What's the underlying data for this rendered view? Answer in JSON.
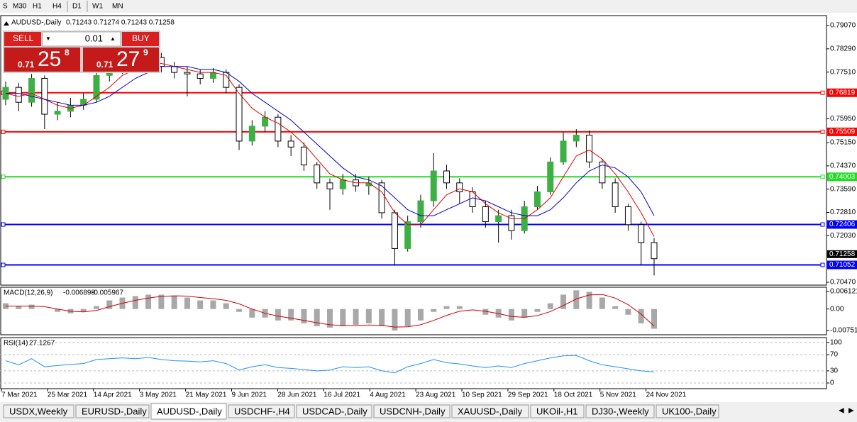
{
  "toolbar": {
    "timeframes": [
      "S",
      "M30",
      "H1",
      "H4",
      "D1",
      "W1",
      "MN"
    ]
  },
  "trade_panel": {
    "sell": "SELL",
    "buy": "BUY",
    "lot": "0.01",
    "sell_price": {
      "big": "0.71",
      "main": "25",
      "pip": "8"
    },
    "buy_price": {
      "big": "0.71",
      "main": "27",
      "pip": "9"
    }
  },
  "chart_data": [
    {
      "type": "candlestick",
      "title": "AUDUSD-,Daily",
      "subtitle": "0.71243 0.71274 0.71243 0.71258",
      "date_labels": [
        "7 Mar 2021",
        "25 Mar 2021",
        "14 Apr 2021",
        "3 May 2021",
        "21 May 2021",
        "9 Jun 2021",
        "28 Jun 2021",
        "16 Jul 2021",
        "4 Aug 2021",
        "23 Aug 2021",
        "10 Sep 2021",
        "29 Sep 2021",
        "18 Oct 2021",
        "5 Nov 2021",
        "24 Nov 2021"
      ],
      "open": [
        0.766,
        0.77,
        0.765,
        0.773,
        0.761,
        0.762,
        0.764,
        0.766,
        0.774,
        0.776,
        0.778,
        0.7775,
        0.78,
        0.777,
        0.775,
        0.7745,
        0.773,
        0.775,
        0.77,
        0.752,
        0.757,
        0.76,
        0.752,
        0.75,
        0.744,
        0.738,
        0.736,
        0.739,
        0.737,
        0.738,
        0.728,
        0.716,
        0.725,
        0.732,
        0.742,
        0.738,
        0.735,
        0.73,
        0.725,
        0.727,
        0.722,
        0.73,
        0.735,
        0.745,
        0.752,
        0.754,
        0.745,
        0.738,
        0.73,
        0.724,
        0.718
      ],
      "high": [
        0.772,
        0.7715,
        0.7745,
        0.774,
        0.765,
        0.7665,
        0.768,
        0.776,
        0.778,
        0.78,
        0.784,
        0.782,
        0.7815,
        0.7785,
        0.777,
        0.776,
        0.7765,
        0.776,
        0.771,
        0.759,
        0.762,
        0.761,
        0.754,
        0.7515,
        0.745,
        0.7395,
        0.741,
        0.741,
        0.74,
        0.739,
        0.729,
        0.727,
        0.734,
        0.748,
        0.744,
        0.7395,
        0.7365,
        0.732,
        0.729,
        0.729,
        0.732,
        0.737,
        0.7465,
        0.755,
        0.756,
        0.7555,
        0.746,
        0.7395,
        0.731,
        0.725,
        0.7195
      ],
      "low": [
        0.764,
        0.762,
        0.7635,
        0.756,
        0.759,
        0.76,
        0.7625,
        0.765,
        0.772,
        0.7745,
        0.7755,
        0.776,
        0.775,
        0.773,
        0.767,
        0.771,
        0.7715,
        0.768,
        0.749,
        0.7505,
        0.755,
        0.75,
        0.747,
        0.742,
        0.736,
        0.729,
        0.734,
        0.735,
        0.734,
        0.726,
        0.7105,
        0.715,
        0.723,
        0.73,
        0.736,
        0.731,
        0.728,
        0.723,
        0.718,
        0.719,
        0.721,
        0.729,
        0.734,
        0.744,
        0.75,
        0.743,
        0.736,
        0.728,
        0.722,
        0.7105,
        0.707
      ],
      "close": [
        0.77,
        0.765,
        0.773,
        0.761,
        0.762,
        0.764,
        0.766,
        0.774,
        0.776,
        0.778,
        0.7775,
        0.78,
        0.777,
        0.775,
        0.7745,
        0.773,
        0.775,
        0.77,
        0.752,
        0.757,
        0.76,
        0.752,
        0.75,
        0.744,
        0.738,
        0.736,
        0.739,
        0.737,
        0.738,
        0.728,
        0.716,
        0.725,
        0.732,
        0.742,
        0.738,
        0.735,
        0.73,
        0.725,
        0.727,
        0.722,
        0.73,
        0.735,
        0.745,
        0.752,
        0.754,
        0.745,
        0.738,
        0.73,
        0.724,
        0.718,
        0.7126
      ],
      "up_color": "#3cb043",
      "down_color": "#ffffff",
      "lines": [
        {
          "color": "#e00000",
          "values": [
            0.768,
            0.767,
            0.768,
            0.766,
            0.764,
            0.763,
            0.764,
            0.767,
            0.77,
            0.774,
            0.776,
            0.778,
            0.778,
            0.777,
            0.776,
            0.775,
            0.775,
            0.774,
            0.768,
            0.763,
            0.76,
            0.758,
            0.755,
            0.751,
            0.746,
            0.741,
            0.739,
            0.738,
            0.738,
            0.735,
            0.728,
            0.724,
            0.724,
            0.729,
            0.734,
            0.736,
            0.735,
            0.731,
            0.728,
            0.726,
            0.726,
            0.729,
            0.733,
            0.74,
            0.747,
            0.749,
            0.746,
            0.741,
            0.735,
            0.728,
            0.72
          ]
        },
        {
          "color": "#0000c8",
          "values": [
            0.768,
            0.768,
            0.767,
            0.766,
            0.765,
            0.764,
            0.764,
            0.765,
            0.767,
            0.77,
            0.773,
            0.775,
            0.777,
            0.777,
            0.777,
            0.776,
            0.776,
            0.775,
            0.772,
            0.768,
            0.765,
            0.762,
            0.759,
            0.755,
            0.751,
            0.747,
            0.743,
            0.74,
            0.739,
            0.737,
            0.733,
            0.729,
            0.727,
            0.727,
            0.729,
            0.731,
            0.733,
            0.732,
            0.73,
            0.728,
            0.727,
            0.727,
            0.729,
            0.733,
            0.738,
            0.742,
            0.744,
            0.743,
            0.74,
            0.735,
            0.727
          ]
        }
      ],
      "levels": [
        {
          "value": 0.76819,
          "color": "#ff0000"
        },
        {
          "value": 0.75509,
          "color": "#ff0000"
        },
        {
          "value": 0.74003,
          "color": "#22dd22"
        },
        {
          "value": 0.72406,
          "color": "#0000ff"
        },
        {
          "value": 0.71052,
          "color": "#0000ff"
        }
      ],
      "current_price": 0.71258,
      "ylim": [
        0.70375,
        0.79403
      ],
      "yticks": [
        {
          "value": 0.7907,
          "label": "0.79070"
        },
        {
          "value": 0.7829,
          "label": "0.78290"
        },
        {
          "value": 0.7751,
          "label": "0.77510"
        },
        {
          "value": 0.7595,
          "label": "0.75950"
        },
        {
          "value": 0.7515,
          "label": "0.75150"
        },
        {
          "value": 0.7437,
          "label": "0.74370"
        },
        {
          "value": 0.7359,
          "label": "0.73590"
        },
        {
          "value": 0.7281,
          "label": "0.72810"
        },
        {
          "value": 0.7203,
          "label": "0.72030"
        },
        {
          "value": 0.7047,
          "label": "0.70470"
        }
      ]
    },
    {
      "type": "macd",
      "title": "MACD(12,26,9)",
      "hist_color": "#a8a8a8",
      "signal_color": "#d00000",
      "histogram": [
        0.002,
        0.001,
        0.0015,
        0,
        -0.001,
        -0.0015,
        -0.001,
        0.001,
        0.003,
        0.004,
        0.0045,
        0.005,
        0.005,
        0.0045,
        0.004,
        0.003,
        0.003,
        0.002,
        -0.001,
        -0.003,
        -0.003,
        -0.004,
        -0.004,
        -0.005,
        -0.006,
        -0.0065,
        -0.006,
        -0.0055,
        -0.005,
        -0.006,
        -0.0075,
        -0.006,
        -0.004,
        -0.001,
        0.001,
        0.001,
        0,
        -0.002,
        -0.003,
        -0.004,
        -0.003,
        -0.001,
        0.002,
        0.005,
        0.0065,
        0.006,
        0.004,
        0.001,
        -0.002,
        -0.005,
        -0.006898
      ],
      "signal": [
        0.001,
        0.001,
        0.001,
        0.0008,
        0,
        -0.0008,
        -0.001,
        -0.0005,
        0.0008,
        0.002,
        0.003,
        0.0038,
        0.0044,
        0.0046,
        0.0045,
        0.004,
        0.0036,
        0.003,
        0.0018,
        0,
        -0.0015,
        -0.0025,
        -0.0032,
        -0.004,
        -0.0048,
        -0.0055,
        -0.0058,
        -0.0058,
        -0.0056,
        -0.0057,
        -0.0063,
        -0.0062,
        -0.0055,
        -0.004,
        -0.0022,
        -0.0008,
        -0.0003,
        -0.0008,
        -0.0016,
        -0.0026,
        -0.0029,
        -0.0023,
        -0.0009,
        0.0012,
        0.0035,
        0.0049,
        0.0051,
        0.0038,
        0.0015,
        -0.0018,
        -0.005967
      ],
      "ylim": [
        -0.00899,
        0.00759
      ],
      "yticks": [
        0.006121,
        {
          "value": 0,
          "label": "0.00"
        },
        -0.007518
      ]
    },
    {
      "type": "line",
      "title": "RSI(14)",
      "color": "#1e90ff",
      "values": [
        55,
        45,
        60,
        40,
        43,
        46,
        48,
        58,
        60,
        62,
        60,
        63,
        58,
        55,
        54,
        52,
        55,
        48,
        32,
        40,
        45,
        38,
        36,
        33,
        30,
        32,
        40,
        38,
        40,
        30,
        25,
        40,
        48,
        58,
        50,
        47,
        42,
        38,
        42,
        38,
        48,
        55,
        62,
        67,
        68,
        55,
        45,
        40,
        35,
        30,
        27.1267
      ],
      "ylim": [
        -14,
        112
      ],
      "yticks": [
        100,
        70,
        30,
        0
      ]
    }
  ],
  "tabs": {
    "items": [
      "USDX,Weekly",
      "EURUSD-,Daily",
      "AUDUSD-,Daily",
      "USDCHF-,H4",
      "USDCAD-,Daily",
      "USDCNH-,Daily",
      "XAUUSD-,Daily",
      "UKOil-,H1",
      "DJ30-,Weekly",
      "UK100-,Daily"
    ],
    "active": 2
  }
}
